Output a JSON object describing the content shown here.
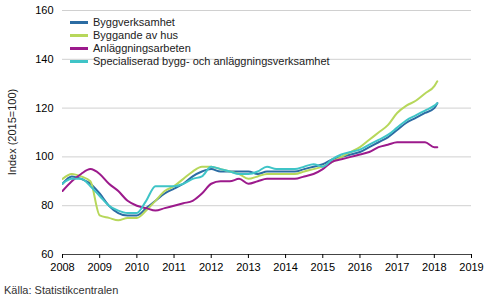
{
  "chart_data": {
    "type": "line",
    "y_label": "Index (2015=100)",
    "caption": "Källa: Statistikcentralen",
    "x": [
      2008,
      2008.25,
      2008.5,
      2008.75,
      2009,
      2009.25,
      2009.5,
      2009.75,
      2010,
      2010.25,
      2010.5,
      2010.75,
      2011,
      2011.25,
      2011.5,
      2011.75,
      2012,
      2012.25,
      2012.5,
      2012.75,
      2013,
      2013.25,
      2013.5,
      2013.75,
      2014,
      2014.25,
      2014.5,
      2014.75,
      2015,
      2015.25,
      2015.5,
      2015.75,
      2016,
      2016.25,
      2016.5,
      2016.75,
      2017,
      2017.25,
      2017.5,
      2017.75,
      2018,
      2018.08
    ],
    "series": [
      {
        "name": "Byggverksamhet",
        "color": "#2b6ca3",
        "values": [
          89,
          92,
          91,
          89,
          85,
          80,
          77,
          76,
          76,
          79,
          82,
          85,
          87,
          89,
          92,
          94,
          95,
          94,
          94,
          94,
          94,
          93,
          94,
          94,
          94,
          94,
          95,
          96,
          97,
          99,
          100,
          101,
          102,
          104,
          106,
          108,
          111,
          114,
          116,
          118,
          120,
          122
        ]
      },
      {
        "name": "Byggande av hus",
        "color": "#b7d75b",
        "values": [
          91,
          93,
          92,
          90,
          76,
          75,
          74,
          75,
          75,
          78,
          82,
          86,
          88,
          91,
          94,
          96,
          96,
          95,
          94,
          93,
          91,
          92,
          93,
          93,
          93,
          93,
          94,
          95,
          96,
          98,
          100,
          102,
          104,
          107,
          110,
          113,
          118,
          121,
          123,
          126,
          129,
          131
        ]
      },
      {
        "name": "Anläggningsarbeten",
        "color": "#9c1a8c",
        "values": [
          86,
          90,
          93,
          95,
          93,
          89,
          86,
          82,
          80,
          79,
          78,
          79,
          80,
          81,
          82,
          85,
          89,
          90,
          90,
          91,
          89,
          90,
          91,
          91,
          91,
          91,
          92,
          93,
          95,
          98,
          99,
          100,
          101,
          102,
          104,
          105,
          106,
          106,
          106,
          106,
          104,
          104
        ]
      },
      {
        "name": "Specialiserad bygg- och anläggningsverksamhet",
        "color": "#3fc4c7",
        "values": [
          89,
          91,
          91,
          88,
          84,
          80,
          78,
          77,
          77,
          82,
          88,
          88,
          88,
          89,
          91,
          92,
          96,
          95,
          94,
          93,
          93,
          94,
          96,
          95,
          95,
          95,
          96,
          97,
          96,
          99,
          101,
          102,
          103,
          105,
          107,
          109,
          112,
          115,
          117,
          119,
          121,
          122
        ]
      }
    ],
    "xlim": [
      2008,
      2019
    ],
    "xticks": [
      2008,
      2009,
      2010,
      2011,
      2012,
      2013,
      2014,
      2015,
      2016,
      2017,
      2018,
      2019
    ],
    "ylim": [
      60,
      160
    ],
    "yticks": [
      60,
      80,
      100,
      120,
      140,
      160
    ],
    "grid": true,
    "legend": "top-left"
  }
}
